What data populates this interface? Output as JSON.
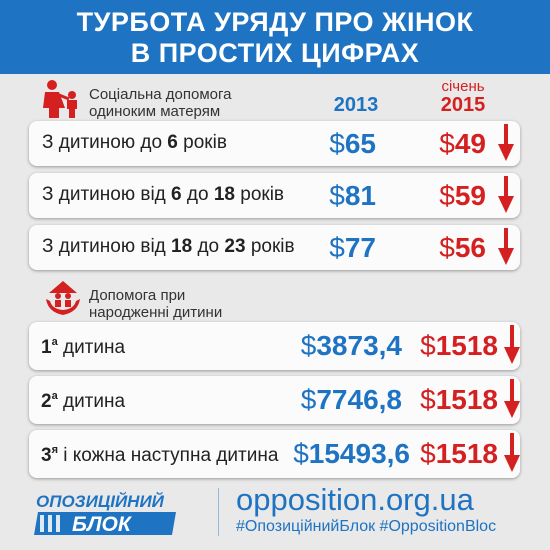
{
  "header": {
    "line1": "ТУРБОТА УРЯДУ ПРО ЖІНОК",
    "line2": "В ПРОСТИХ ЦИФРАХ"
  },
  "section1": {
    "label_line1": "Соціальна допомога",
    "label_line2": "одиноким матерям",
    "year_old": "2013",
    "month_new": "січень",
    "year_new": "2015",
    "rows": [
      {
        "pre": "З дитиною до ",
        "n1": "6",
        "mid": "",
        "n2": "",
        "post": " років",
        "old": "65",
        "new": "49"
      },
      {
        "pre": "З дитиною від ",
        "n1": "6",
        "mid": " до ",
        "n2": "18",
        "post": " років",
        "old": "81",
        "new": "59"
      },
      {
        "pre": "З дитиною від ",
        "n1": "18",
        "mid": " до ",
        "n2": "23",
        "post": " років",
        "old": "77",
        "new": "56"
      }
    ]
  },
  "section2": {
    "label_line1": "Допомога при",
    "label_line2": "народженні дитини",
    "rows": [
      {
        "num": "1",
        "sup": "а",
        "text": " дитина",
        "old": "3873,4",
        "new": "1518"
      },
      {
        "num": "2",
        "sup": "а",
        "text": " дитина",
        "old": "7746,8",
        "new": "1518"
      },
      {
        "num": "3",
        "sup": "я",
        "text": " і кожна наступна дитина",
        "old": "15493,6",
        "new": "1518"
      }
    ]
  },
  "currency_symbol": "$",
  "footer": {
    "logo_line1": "ОПОЗИЦІЙНИЙ",
    "logo_line2": "БЛОК",
    "site": "opposition.org.ua",
    "tags": "#ОпозиційнийБлок #OppositionBloc"
  },
  "colors": {
    "blue": "#1e73c2",
    "red": "#d42020"
  },
  "icons": [
    "mother-child-icon",
    "hands-family-icon",
    "down-arrow-icon"
  ]
}
